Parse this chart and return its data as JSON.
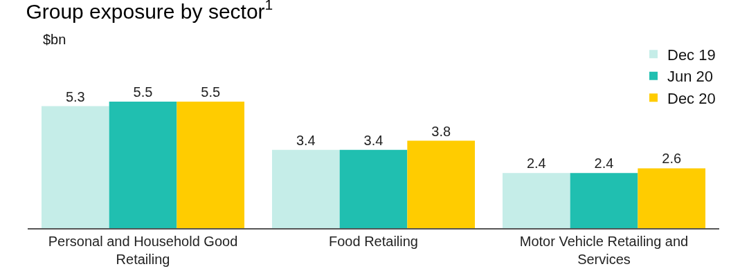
{
  "chart_data": {
    "type": "bar",
    "title": "Group exposure by sector$^{1}$",
    "ylabel": "$bn",
    "categories": [
      "Personal and Household Good Retailing",
      "Food Retailing",
      "Motor Vehicle Retailing and Services"
    ],
    "series": [
      {
        "name": "Dec 19",
        "color": "#c5ede8",
        "values": [
          5.3,
          3.4,
          2.4
        ]
      },
      {
        "name": "Jun 20",
        "color": "#20bfb0",
        "values": [
          5.5,
          3.4,
          2.4
        ]
      },
      {
        "name": "Dec 20",
        "color": "#ffcc00",
        "values": [
          5.5,
          3.8,
          2.6
        ]
      }
    ],
    "data_labels": true,
    "legend": "top right"
  }
}
